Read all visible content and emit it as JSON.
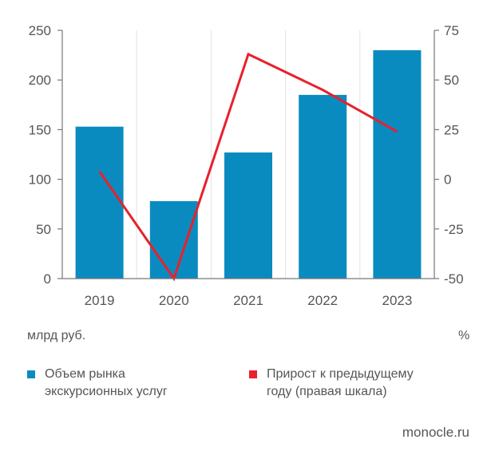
{
  "chart_data": {
    "type": "bar",
    "categories": [
      "2019",
      "2020",
      "2021",
      "2022",
      "2023"
    ],
    "series": [
      {
        "name": "Объем рынка экскурсионных услуг",
        "type": "bar",
        "axis": "left",
        "color": "#0a8bbf",
        "values": [
          153,
          78,
          127,
          185,
          230
        ]
      },
      {
        "name": "Прирост к предыдущему году (правая шкала)",
        "type": "line",
        "axis": "right",
        "color": "#e8212c",
        "values": [
          4,
          -50,
          63,
          45,
          24
        ]
      }
    ],
    "y_left": {
      "min": 0,
      "max": 250,
      "ticks": [
        "0",
        "50",
        "100",
        "150",
        "200",
        "250"
      ],
      "unit": "млрд руб."
    },
    "y_right": {
      "min": -50,
      "max": 75,
      "ticks": [
        "-50",
        "-25",
        "0",
        "25",
        "50",
        "75"
      ],
      "unit": "%"
    },
    "grid": "vertical",
    "legend_position": "bottom"
  },
  "units": {
    "left": "млрд руб.",
    "right": "%"
  },
  "legend": {
    "bar_label": "Объем рынка экскурсионных услуг",
    "line_label": "Прирост к предыдущему году (правая шкала)"
  },
  "source": "monocle.ru"
}
